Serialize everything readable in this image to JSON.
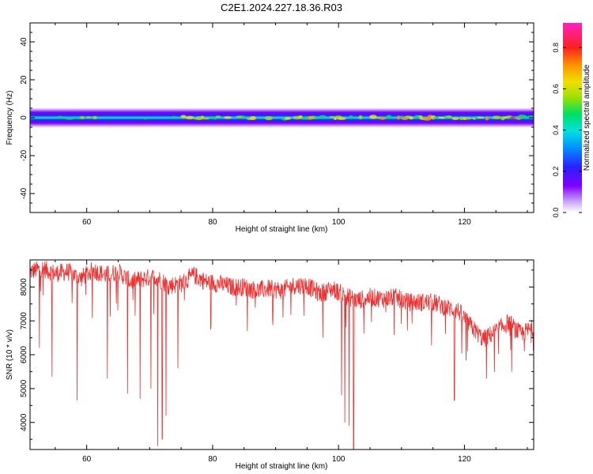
{
  "title": "C2E1.2024.227.18.36.R03",
  "colors": {
    "snr_line": "#ef3030",
    "background": "#ffffff",
    "axis": "#000000"
  },
  "colorbar": {
    "label": "Normalized spectral amplitude",
    "range": [
      0,
      0.92
    ],
    "ticks": [
      "0.0",
      "0.2",
      "0.4",
      "0.6",
      "0.8"
    ],
    "tick_values": [
      0,
      0.2,
      0.4,
      0.6,
      0.8
    ],
    "colormap": "rainbow (white-purple-blue-cyan-green-yellow-orange-red-magenta)"
  },
  "chart_data": [
    {
      "type": "heatmap",
      "xlabel": "Height of straight line (km)",
      "ylabel": "Frequency (Hz)",
      "xlim": [
        51,
        131
      ],
      "ylim": [
        -50,
        50
      ],
      "x_ticks": [
        "60",
        "80",
        "100",
        "120"
      ],
      "x_tick_values": [
        60,
        80,
        100,
        120
      ],
      "y_ticks": [
        "40",
        "20",
        "0",
        "-20",
        "-40"
      ],
      "y_tick_values": [
        40,
        20,
        0,
        -20,
        -40
      ],
      "band_center_hz": 0,
      "band_halfwidth_hz": 3,
      "grid": false
    },
    {
      "type": "line",
      "xlabel": "Height of straight line (km)",
      "ylabel": "SNR (10 * v/v)",
      "xlim": [
        51,
        131
      ],
      "ylim": [
        3200,
        8800
      ],
      "x_ticks": [
        "60",
        "80",
        "100",
        "120"
      ],
      "x_tick_values": [
        60,
        80,
        100,
        120
      ],
      "y_ticks": [
        "8000",
        "7000",
        "6000",
        "5000",
        "4000"
      ],
      "y_tick_values": [
        8000,
        7000,
        6000,
        5000,
        4000
      ],
      "grid": false,
      "series": [
        {
          "x": [
            51,
            53,
            55,
            57,
            59,
            61,
            63,
            65,
            67,
            69,
            71,
            73,
            75,
            77,
            79,
            81,
            83,
            85,
            87,
            89,
            91,
            93,
            95,
            97,
            99,
            101,
            103,
            105,
            107,
            109,
            111,
            113,
            115,
            117,
            119,
            121,
            123,
            125,
            127,
            129,
            131
          ],
          "values": [
            8450,
            8550,
            8400,
            8450,
            8250,
            8500,
            8350,
            8450,
            8150,
            8250,
            8300,
            8050,
            8100,
            8350,
            8150,
            8100,
            8000,
            8000,
            7900,
            7950,
            7900,
            8050,
            8050,
            7800,
            7950,
            7750,
            7600,
            7700,
            7650,
            7700,
            7550,
            7550,
            7550,
            7400,
            7300,
            6850,
            6450,
            6700,
            6950,
            6600,
            6800
          ]
        }
      ],
      "dips": [
        {
          "x": 52.5,
          "y": 6200
        },
        {
          "x": 54.5,
          "y": 5350
        },
        {
          "x": 58.5,
          "y": 4650
        },
        {
          "x": 63.3,
          "y": 5300
        },
        {
          "x": 66.5,
          "y": 4850
        },
        {
          "x": 68.5,
          "y": 4700
        },
        {
          "x": 70.2,
          "y": 5000
        },
        {
          "x": 71.3,
          "y": 3300
        },
        {
          "x": 72.0,
          "y": 3500
        },
        {
          "x": 72.6,
          "y": 4200
        },
        {
          "x": 74.5,
          "y": 5600
        },
        {
          "x": 85.5,
          "y": 6700
        },
        {
          "x": 89.5,
          "y": 7050
        },
        {
          "x": 94.5,
          "y": 7150
        },
        {
          "x": 97.5,
          "y": 6500
        },
        {
          "x": 100.5,
          "y": 4800
        },
        {
          "x": 101.0,
          "y": 4000
        },
        {
          "x": 101.7,
          "y": 3900
        },
        {
          "x": 102.4,
          "y": 3200
        },
        {
          "x": 107.5,
          "y": 7250
        },
        {
          "x": 118.4,
          "y": 4650
        },
        {
          "x": 120.5,
          "y": 6100
        },
        {
          "x": 123.5,
          "y": 5300
        },
        {
          "x": 127.5,
          "y": 5500
        },
        {
          "x": 129.5,
          "y": 6100
        }
      ]
    }
  ]
}
